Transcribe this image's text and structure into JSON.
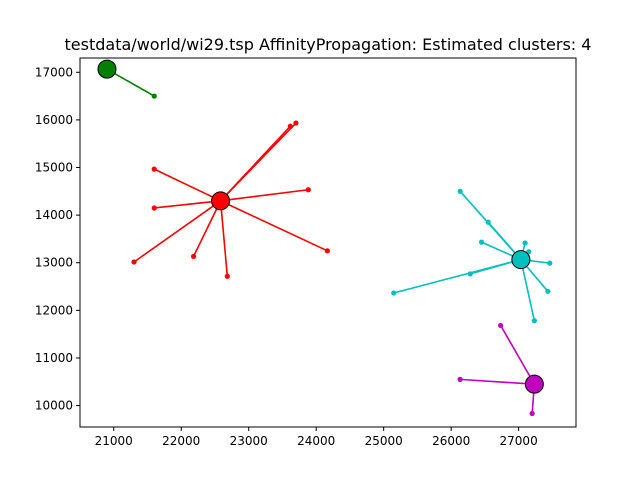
{
  "chart_data": {
    "type": "scatter",
    "title": "testdata/world/wi29.tsp AffinityPropagation: Estimated clusters: 4",
    "xlabel": "",
    "ylabel": "",
    "xlim": [
      20500,
      27850
    ],
    "ylim": [
      9550,
      17300
    ],
    "xticks": [
      21000,
      22000,
      23000,
      24000,
      25000,
      26000,
      27000
    ],
    "yticks": [
      10000,
      11000,
      12000,
      13000,
      14000,
      15000,
      16000,
      17000
    ],
    "grid": false,
    "clusters": [
      {
        "color": "#008000",
        "center": [
          20900,
          17066
        ],
        "points": [
          [
            21600,
            16500
          ]
        ]
      },
      {
        "color": "#ff0000",
        "center": [
          22583,
          14300
        ],
        "points": [
          [
            23616,
            15866
          ],
          [
            23700,
            15933
          ],
          [
            21600,
            14966
          ],
          [
            21600,
            14150
          ],
          [
            23883,
            14533
          ],
          [
            24166,
            13250
          ],
          [
            21300,
            13016
          ],
          [
            22183,
            13133
          ],
          [
            22683,
            12716
          ]
        ]
      },
      {
        "color": "#00bfbf",
        "center": [
          27033,
          13066
        ],
        "points": [
          [
            26133,
            14500
          ],
          [
            26550,
            13850
          ],
          [
            26450,
            13433
          ],
          [
            26283,
            12766
          ],
          [
            25149,
            12365
          ],
          [
            27096,
            13415
          ],
          [
            27150,
            13232
          ],
          [
            27462,
            12992
          ],
          [
            27433,
            12400
          ],
          [
            27233,
            11783
          ]
        ]
      },
      {
        "color": "#bf00bf",
        "center": [
          27233,
          10450
        ],
        "points": [
          [
            26733,
            11683
          ],
          [
            26133,
            10550
          ],
          [
            27200,
            9833
          ]
        ]
      }
    ]
  }
}
